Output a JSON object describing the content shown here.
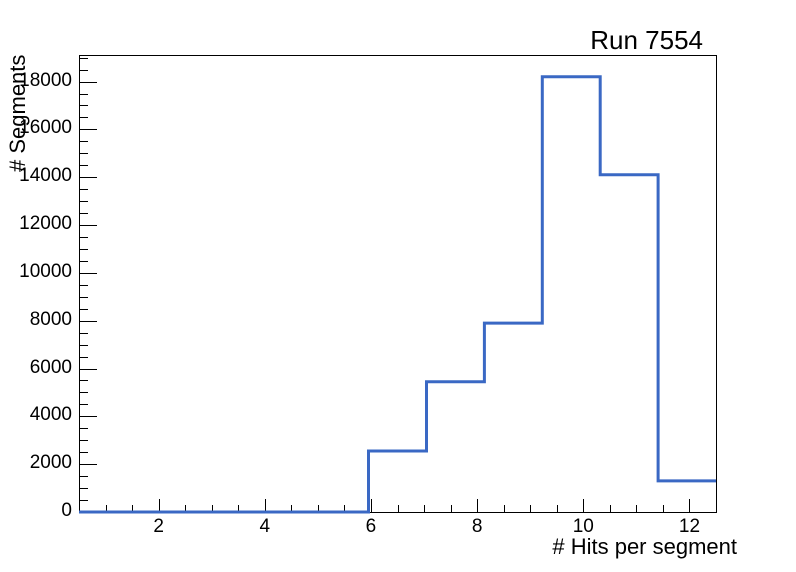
{
  "title": "Run 7554",
  "chart_data": {
    "type": "bar",
    "subtype": "step-histogram",
    "title": "Run 7554",
    "xlabel": "# Hits per segment",
    "ylabel": "# Segments",
    "xlim": [
      0.5,
      12.5
    ],
    "ylim": [
      0,
      19110
    ],
    "bin_edges": [
      0.5,
      1.5909,
      2.6818,
      3.7727,
      4.8636,
      5.9545,
      7.0455,
      8.1364,
      9.2273,
      10.3182,
      11.4091,
      12.5
    ],
    "counts": [
      0,
      0,
      0,
      0,
      0,
      2550,
      5450,
      7900,
      18200,
      14100,
      1300
    ],
    "x_major_ticks": [
      2,
      4,
      6,
      8,
      10,
      12
    ],
    "x_minor_step": 0.5,
    "y_major_ticks": [
      0,
      2000,
      4000,
      6000,
      8000,
      10000,
      12000,
      14000,
      16000,
      18000
    ],
    "y_minor_step": 500,
    "grid": false,
    "legend": null,
    "line_color": "#3a68c4",
    "frame_color": "#000000",
    "background_color": "#ffffff"
  }
}
